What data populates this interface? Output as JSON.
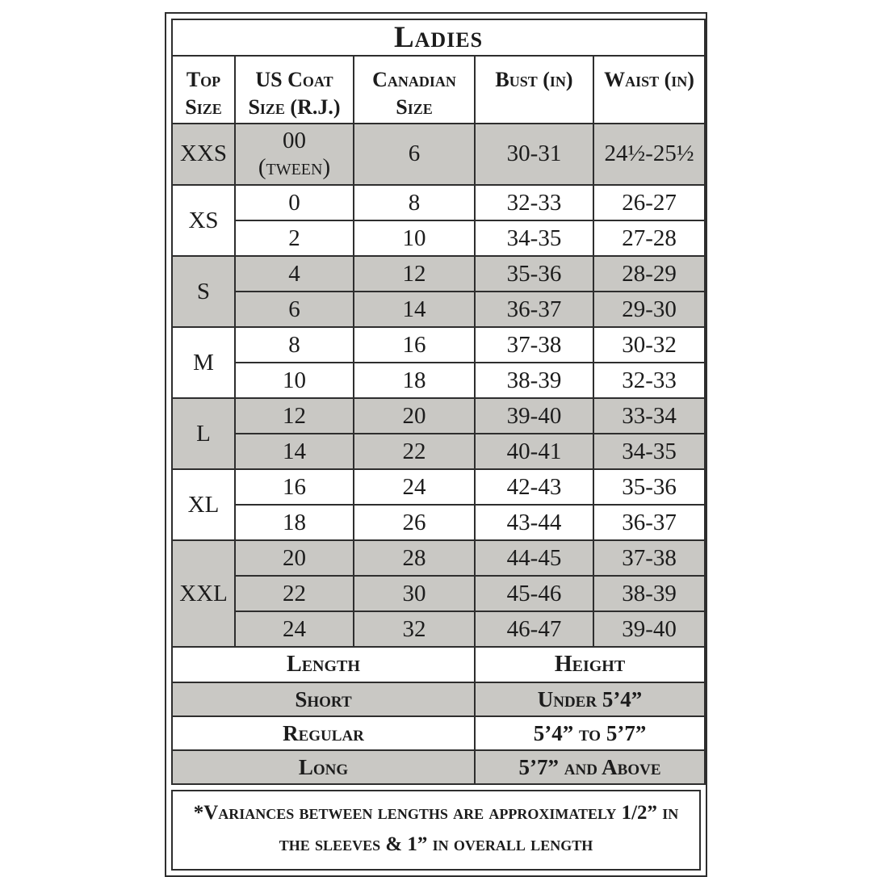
{
  "title": "Ladies",
  "colors": {
    "shaded_row": "#c9c8c4",
    "border": "#2e2e2e",
    "text": "#1c1c1c",
    "background": "#ffffff"
  },
  "columns": [
    {
      "id": "top-size",
      "label": "Top\nSize"
    },
    {
      "id": "us-coat-size",
      "label": "US Coat\nSize (R.J.)"
    },
    {
      "id": "canadian-size",
      "label": "Canadian\nSize"
    },
    {
      "id": "bust",
      "label": "Bust (in)"
    },
    {
      "id": "waist",
      "label": "Waist (in)"
    }
  ],
  "size_groups": [
    {
      "size": "XXS",
      "shaded": true,
      "rows": [
        {
          "us_coat": "00\n(tween)",
          "canadian": "6",
          "bust": "30-31",
          "waist": "24½-25½"
        }
      ]
    },
    {
      "size": "XS",
      "shaded": false,
      "rows": [
        {
          "us_coat": "0",
          "canadian": "8",
          "bust": "32-33",
          "waist": "26-27"
        },
        {
          "us_coat": "2",
          "canadian": "10",
          "bust": "34-35",
          "waist": "27-28"
        }
      ]
    },
    {
      "size": "S",
      "shaded": true,
      "rows": [
        {
          "us_coat": "4",
          "canadian": "12",
          "bust": "35-36",
          "waist": "28-29"
        },
        {
          "us_coat": "6",
          "canadian": "14",
          "bust": "36-37",
          "waist": "29-30"
        }
      ]
    },
    {
      "size": "M",
      "shaded": false,
      "rows": [
        {
          "us_coat": "8",
          "canadian": "16",
          "bust": "37-38",
          "waist": "30-32"
        },
        {
          "us_coat": "10",
          "canadian": "18",
          "bust": "38-39",
          "waist": "32-33"
        }
      ]
    },
    {
      "size": "L",
      "shaded": true,
      "rows": [
        {
          "us_coat": "12",
          "canadian": "20",
          "bust": "39-40",
          "waist": "33-34"
        },
        {
          "us_coat": "14",
          "canadian": "22",
          "bust": "40-41",
          "waist": "34-35"
        }
      ]
    },
    {
      "size": "XL",
      "shaded": false,
      "rows": [
        {
          "us_coat": "16",
          "canadian": "24",
          "bust": "42-43",
          "waist": "35-36"
        },
        {
          "us_coat": "18",
          "canadian": "26",
          "bust": "43-44",
          "waist": "36-37"
        }
      ]
    },
    {
      "size": "XXL",
      "shaded": true,
      "rows": [
        {
          "us_coat": "20",
          "canadian": "28",
          "bust": "44-45",
          "waist": "37-38"
        },
        {
          "us_coat": "22",
          "canadian": "30",
          "bust": "45-46",
          "waist": "38-39"
        },
        {
          "us_coat": "24",
          "canadian": "32",
          "bust": "46-47",
          "waist": "39-40"
        }
      ]
    }
  ],
  "length_section": {
    "columns": [
      "Length",
      "Height"
    ],
    "rows": [
      {
        "length": "Short",
        "height": "Under 5’4”",
        "shaded": true
      },
      {
        "length": "Regular",
        "height": "5’4” to 5’7”",
        "shaded": false
      },
      {
        "length": "Long",
        "height": "5’7” and Above",
        "shaded": true
      }
    ]
  },
  "footnote": {
    "line1": "*Variances between lengths are approximately 1/2” in",
    "line2": "the sleeves & 1” in overall length"
  }
}
